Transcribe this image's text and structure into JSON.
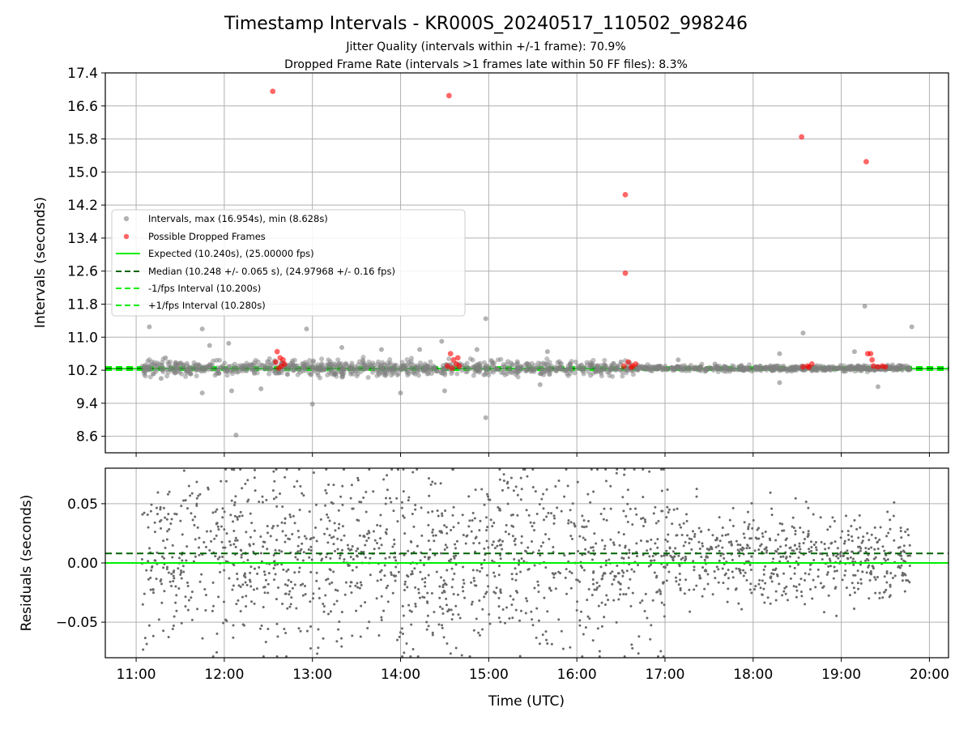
{
  "chart_data": [
    {
      "type": "scatter",
      "panel": "top",
      "title": "Timestamp Intervals - KR000S_20240517_110502_998246",
      "subtitle": [
        "Jitter Quality (intervals within +/-1 frame): 70.9%",
        "Dropped Frame Rate (intervals >1 frames late within 50 FF files): 8.3%"
      ],
      "xlabel": "",
      "ylabel": "Intervals (seconds)",
      "x_unit": "time of day (UTC)",
      "xlim": [
        "10:39",
        "20:13"
      ],
      "ylim": [
        8.2,
        17.4
      ],
      "y_ticks": [
        "8.6",
        "9.4",
        "10.2",
        "11.0",
        "11.8",
        "12.6",
        "13.4",
        "14.2",
        "15.0",
        "15.8",
        "16.6",
        "17.4"
      ],
      "x_ticks": [
        "11:00",
        "12:00",
        "13:00",
        "14:00",
        "15:00",
        "16:00",
        "17:00",
        "18:00",
        "19:00",
        "20:00"
      ],
      "grid": true,
      "legend_placement": "center-left",
      "legend": [
        "Intervals, max (16.954s), min (8.628s)",
        "Possible Dropped Frames",
        "Expected (10.240s), (25.00000 fps)",
        "Median (10.248 +/- 0.065 s), (24.97968 +/- 0.16 fps)",
        "-1/fps Interval (10.200s)",
        "+1/fps Interval (10.280s)"
      ],
      "series": [
        {
          "name": "Intervals, max (16.954s), min (8.628s)",
          "style": "scatter",
          "color": "#808080",
          "note": "dense band of approx 1900 points between about 10.0 s and 10.6 s from 11:04 to 19:47",
          "outliers": [
            {
              "x": "11:09",
              "y": 11.25
            },
            {
              "x": "11:17",
              "y": 10.0
            },
            {
              "x": "11:20",
              "y": 10.5
            },
            {
              "x": "11:45",
              "y": 11.2
            },
            {
              "x": "11:45",
              "y": 9.65
            },
            {
              "x": "11:50",
              "y": 10.8
            },
            {
              "x": "12:03",
              "y": 10.85
            },
            {
              "x": "12:08",
              "y": 8.63
            },
            {
              "x": "12:05",
              "y": 9.7
            },
            {
              "x": "12:25",
              "y": 9.75
            },
            {
              "x": "12:56",
              "y": 11.2
            },
            {
              "x": "13:00",
              "y": 9.38
            },
            {
              "x": "13:20",
              "y": 10.75
            },
            {
              "x": "13:47",
              "y": 10.7
            },
            {
              "x": "14:00",
              "y": 9.65
            },
            {
              "x": "14:13",
              "y": 10.7
            },
            {
              "x": "14:28",
              "y": 10.9
            },
            {
              "x": "14:30",
              "y": 9.7
            },
            {
              "x": "14:52",
              "y": 10.7
            },
            {
              "x": "14:58",
              "y": 11.45
            },
            {
              "x": "14:58",
              "y": 9.05
            },
            {
              "x": "15:35",
              "y": 9.85
            },
            {
              "x": "15:40",
              "y": 10.65
            },
            {
              "x": "16:30",
              "y": 10.4
            },
            {
              "x": "17:09",
              "y": 10.45
            },
            {
              "x": "17:34",
              "y": 10.35
            },
            {
              "x": "18:18",
              "y": 10.6
            },
            {
              "x": "18:18",
              "y": 9.9
            },
            {
              "x": "18:34",
              "y": 11.1
            },
            {
              "x": "19:09",
              "y": 10.65
            },
            {
              "x": "19:16",
              "y": 11.75
            },
            {
              "x": "19:25",
              "y": 9.8
            },
            {
              "x": "19:48",
              "y": 11.25
            }
          ]
        },
        {
          "name": "Possible Dropped Frames",
          "style": "scatter",
          "color": "#ff0000",
          "points": [
            {
              "x": "12:33",
              "y": 16.954
            },
            {
              "x": "14:33",
              "y": 16.85
            },
            {
              "x": "16:33",
              "y": 14.45
            },
            {
              "x": "16:33",
              "y": 12.55
            },
            {
              "x": "18:33",
              "y": 15.85
            },
            {
              "x": "19:17",
              "y": 15.25
            },
            {
              "x": "12:36",
              "y": 10.65
            },
            {
              "x": "12:38",
              "y": 10.5
            },
            {
              "x": "12:35",
              "y": 10.4
            },
            {
              "x": "12:39",
              "y": 10.3
            },
            {
              "x": "12:41",
              "y": 10.35
            },
            {
              "x": "12:37",
              "y": 10.25
            },
            {
              "x": "12:40",
              "y": 10.45
            },
            {
              "x": "14:32",
              "y": 10.3
            },
            {
              "x": "14:34",
              "y": 10.6
            },
            {
              "x": "14:36",
              "y": 10.45
            },
            {
              "x": "14:38",
              "y": 10.35
            },
            {
              "x": "14:40",
              "y": 10.3
            },
            {
              "x": "14:35",
              "y": 10.25
            },
            {
              "x": "14:39",
              "y": 10.5
            },
            {
              "x": "16:32",
              "y": 10.3
            },
            {
              "x": "16:35",
              "y": 10.4
            },
            {
              "x": "16:38",
              "y": 10.3
            },
            {
              "x": "16:40",
              "y": 10.35
            },
            {
              "x": "16:37",
              "y": 10.27
            },
            {
              "x": "18:34",
              "y": 10.28
            },
            {
              "x": "18:37",
              "y": 10.3
            },
            {
              "x": "18:40",
              "y": 10.35
            },
            {
              "x": "18:38",
              "y": 10.27
            },
            {
              "x": "19:18",
              "y": 10.6
            },
            {
              "x": "19:20",
              "y": 10.6
            },
            {
              "x": "19:21",
              "y": 10.45
            },
            {
              "x": "19:22",
              "y": 10.3
            },
            {
              "x": "19:25",
              "y": 10.28
            },
            {
              "x": "19:28",
              "y": 10.3
            },
            {
              "x": "19:30",
              "y": 10.28
            }
          ]
        },
        {
          "name": "Expected (10.240s), (25.00000 fps)",
          "style": "solid-line",
          "color": "#00ee00",
          "y": 10.24
        },
        {
          "name": "Median (10.248 +/- 0.065 s), (24.97968 +/- 0.16 fps)",
          "style": "dashed-line",
          "color": "#006400",
          "y": 10.248
        },
        {
          "name": "-1/fps Interval (10.200s)",
          "style": "dashed-line",
          "color": "#00ee00",
          "y": 10.2
        },
        {
          "name": "+1/fps Interval (10.280s)",
          "style": "dashed-line",
          "color": "#00ee00",
          "y": 10.28
        }
      ]
    },
    {
      "type": "scatter",
      "panel": "bottom",
      "title": "",
      "xlabel": "Time (UTC)",
      "ylabel": "Residuals (seconds)",
      "xlim": [
        "10:39",
        "20:13"
      ],
      "ylim": [
        -0.08,
        0.08
      ],
      "y_ticks": [
        "−0.05",
        "0.00",
        "0.05"
      ],
      "x_ticks": [
        "11:00",
        "12:00",
        "13:00",
        "14:00",
        "15:00",
        "16:00",
        "17:00",
        "18:00",
        "19:00",
        "20:00"
      ],
      "grid": true,
      "series": [
        {
          "name": "",
          "style": "scatter",
          "color": "#696969",
          "note": "approx 1900 residual points spread between -0.08 and 0.08, narrowing after 17:00 to about -0.04 to 0.05"
        },
        {
          "name": "",
          "style": "solid-line",
          "color": "#00ee00",
          "y": 0.0
        },
        {
          "name": "",
          "style": "dashed-line",
          "color": "#006400",
          "y": 0.008
        }
      ]
    }
  ]
}
